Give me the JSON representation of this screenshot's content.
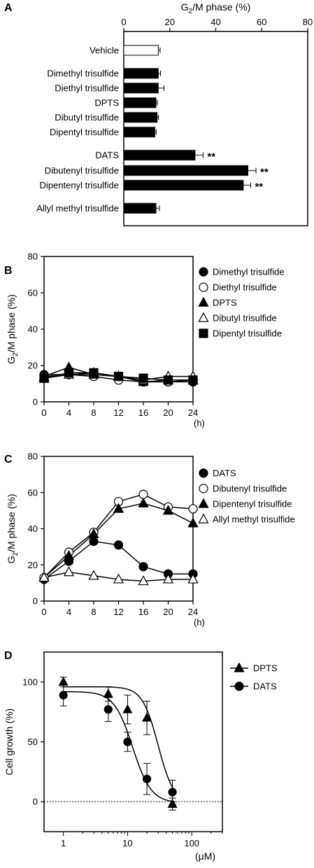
{
  "chart_data": [
    {
      "panel": "A",
      "type": "bar",
      "orientation": "horizontal",
      "xlabel_main": "G",
      "xlabel_sub": "2",
      "xlabel_rest": "/M phase (%)",
      "xlim": [
        0,
        80
      ],
      "xticks": [
        "0",
        "20",
        "40",
        "60",
        "80"
      ],
      "categories": [
        "Vehicle",
        "Dimethyl trisulfide",
        "Diethyl trisulfide",
        "DPTS",
        "Dibutyl trisulfide",
        "Dipentyl trisulfide",
        "DATS",
        "Dibutenyl trisulfide",
        "Dipentenyl trisulfide",
        "Allyl methyl trisulfide"
      ],
      "values": [
        15,
        15,
        15,
        14,
        14.5,
        13.5,
        31,
        54,
        52,
        14
      ],
      "errors": [
        0.8,
        1.0,
        2.5,
        0.6,
        0.6,
        0.6,
        3.5,
        3.5,
        3.2,
        1.5
      ],
      "fills": [
        "#ffffff",
        "#000000",
        "#000000",
        "#000000",
        "#000000",
        "#000000",
        "#000000",
        "#000000",
        "#000000",
        "#000000"
      ],
      "significance": [
        "",
        "",
        "",
        "",
        "",
        "",
        "**",
        "**",
        "**",
        ""
      ]
    },
    {
      "panel": "B",
      "type": "line",
      "ylabel_main": "G",
      "ylabel_sub": "2",
      "ylabel_rest": "/M phase (%)",
      "ylim": [
        0,
        80
      ],
      "yticks": [
        "0",
        "20",
        "40",
        "60",
        "80"
      ],
      "x": [
        0,
        4,
        8,
        12,
        16,
        20,
        24
      ],
      "xticks": [
        "0",
        "4",
        "8",
        "12",
        "16",
        "20",
        "24"
      ],
      "xunit": "(h)",
      "series": [
        {
          "name": "Dimethyl trisulfide",
          "marker": "circle-filled",
          "values": [
            15,
            15,
            15,
            14,
            11,
            11,
            11
          ]
        },
        {
          "name": "Diethyl trisulfide",
          "marker": "circle-open",
          "values": [
            14,
            15,
            14,
            12,
            11,
            11,
            12
          ]
        },
        {
          "name": "DPTS",
          "marker": "triangle-filled",
          "values": [
            14,
            19,
            15,
            14,
            11,
            12,
            12
          ]
        },
        {
          "name": "Dibutyl trisulfide",
          "marker": "triangle-open",
          "values": [
            13,
            15,
            16,
            14,
            12,
            14,
            14
          ]
        },
        {
          "name": "Dipentyl trisulfide",
          "marker": "square-filled",
          "values": [
            13,
            16,
            16,
            14,
            13,
            12,
            12
          ]
        }
      ]
    },
    {
      "panel": "C",
      "type": "line",
      "ylabel_main": "G",
      "ylabel_sub": "2",
      "ylabel_rest": "/M phase (%)",
      "ylim": [
        0,
        80
      ],
      "yticks": [
        "0",
        "20",
        "40",
        "60",
        "80"
      ],
      "x": [
        0,
        4,
        8,
        12,
        16,
        20,
        24
      ],
      "xticks": [
        "0",
        "4",
        "8",
        "12",
        "16",
        "20",
        "24"
      ],
      "xunit": "(h)",
      "series": [
        {
          "name": "DATS",
          "marker": "circle-filled",
          "values": [
            12,
            22,
            33,
            31,
            19,
            15,
            15
          ]
        },
        {
          "name": "Dibutenyl trisulfide",
          "marker": "circle-open",
          "values": [
            13,
            27,
            38,
            55,
            59,
            52,
            51
          ]
        },
        {
          "name": "Dipentenyl trisulfide",
          "marker": "triangle-filled",
          "values": [
            13,
            25,
            37,
            51,
            54,
            50,
            43
          ]
        },
        {
          "name": "Allyl methyl trisulfide",
          "marker": "triangle-open",
          "values": [
            13,
            16,
            14,
            12,
            11,
            12,
            12
          ]
        }
      ]
    },
    {
      "panel": "D",
      "type": "scatter",
      "xscale": "log",
      "xlim": [
        0.5,
        300
      ],
      "xticks": [
        "1",
        "10",
        "100"
      ],
      "xunit": "(μM)",
      "ylabel": "Cell growth (%)",
      "ylim": [
        -25,
        125
      ],
      "yticks": [
        "0",
        "50",
        "100"
      ],
      "reference_line_y": 0,
      "series": [
        {
          "name": "DPTS",
          "marker": "triangle-filled",
          "x": [
            1,
            5,
            10,
            20,
            50
          ],
          "values": [
            100,
            90,
            77,
            70,
            -2
          ],
          "errors": [
            4,
            6,
            12,
            14,
            5
          ],
          "fit": {
            "top": 96,
            "bottom": -2,
            "ic50": 30,
            "hill": 3.5
          }
        },
        {
          "name": "DATS",
          "marker": "circle-filled",
          "x": [
            1,
            5,
            10,
            20,
            50
          ],
          "values": [
            89,
            77,
            50,
            19,
            8
          ],
          "errors": [
            9,
            10,
            8,
            13,
            10
          ],
          "fit": {
            "top": 92,
            "bottom": -1,
            "ic50": 12,
            "hill": 3.0
          }
        }
      ]
    }
  ],
  "panel_labels": [
    "A",
    "B",
    "C",
    "D"
  ]
}
